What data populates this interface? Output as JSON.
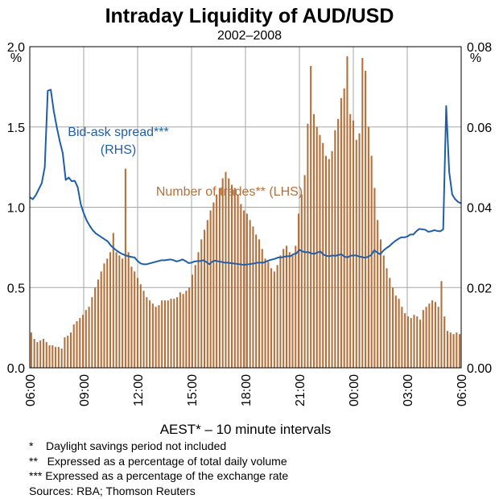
{
  "chart_data": {
    "type": "bar+line",
    "title": "Intraday Liquidity of AUD/USD",
    "subtitle": "2002–2008",
    "xlabel": "AEST* – 10 minute intervals",
    "ylabel_left": "%",
    "ylabel_right": "%",
    "ylim_left": [
      0,
      2.0
    ],
    "ylim_right": [
      0,
      0.08
    ],
    "y_ticks_left": [
      "0.0",
      "0.5",
      "1.0",
      "1.5",
      "2.0"
    ],
    "y_ticks_right": [
      "0.00",
      "0.02",
      "0.04",
      "0.06",
      "0.08"
    ],
    "x_ticks": [
      "06:00",
      "09:00",
      "12:00",
      "15:00",
      "18:00",
      "21:00",
      "00:00",
      "03:00",
      "06:00"
    ],
    "grid": true,
    "series": [
      {
        "name": "Number of trades** (LHS)",
        "type": "bar",
        "axis": "left",
        "color": "#b5703a",
        "values": [
          0.22,
          0.18,
          0.16,
          0.17,
          0.18,
          0.16,
          0.14,
          0.14,
          0.13,
          0.13,
          0.12,
          0.19,
          0.2,
          0.22,
          0.27,
          0.29,
          0.31,
          0.33,
          0.36,
          0.38,
          0.44,
          0.5,
          0.55,
          0.6,
          0.65,
          0.68,
          0.72,
          0.84,
          0.72,
          0.7,
          0.68,
          1.24,
          0.72,
          0.63,
          0.6,
          0.56,
          0.52,
          0.48,
          0.44,
          0.42,
          0.4,
          0.38,
          0.39,
          0.42,
          0.42,
          0.42,
          0.43,
          0.43,
          0.44,
          0.47,
          0.46,
          0.48,
          0.5,
          0.58,
          0.64,
          0.72,
          0.8,
          0.86,
          0.92,
          0.98,
          1.03,
          1.08,
          1.12,
          1.18,
          1.22,
          1.18,
          1.14,
          1.12,
          1.08,
          1.02,
          0.98,
          0.96,
          0.92,
          0.88,
          0.83,
          0.8,
          0.74,
          0.68,
          0.66,
          0.62,
          0.6,
          0.64,
          0.7,
          0.74,
          0.76,
          0.72,
          0.7,
          0.76,
          0.96,
          1.08,
          1.2,
          1.52,
          1.88,
          1.58,
          1.5,
          1.45,
          1.4,
          1.32,
          1.3,
          1.35,
          1.48,
          1.55,
          1.68,
          1.74,
          1.94,
          1.58,
          1.54,
          1.42,
          1.46,
          1.93,
          1.85,
          1.5,
          1.32,
          1.12,
          0.92,
          0.8,
          0.7,
          0.62,
          0.56,
          0.5,
          0.45,
          0.43,
          0.38,
          0.34,
          0.32,
          0.31,
          0.33,
          0.32,
          0.3,
          0.36,
          0.38,
          0.4,
          0.42,
          0.41,
          0.38,
          0.54,
          0.32,
          0.23,
          0.22,
          0.21,
          0.22,
          0.21
        ]
      },
      {
        "name": "Bid-ask spread*** (RHS)",
        "type": "line",
        "axis": "right",
        "color": "#1f5ea8",
        "values": [
          0.0425,
          0.042,
          0.043,
          0.0445,
          0.046,
          0.05,
          0.069,
          0.0693,
          0.064,
          0.06,
          0.0565,
          0.0535,
          0.0468,
          0.0474,
          0.0465,
          0.0466,
          0.045,
          0.0408,
          0.0385,
          0.0367,
          0.0354,
          0.0343,
          0.0335,
          0.033,
          0.0325,
          0.032,
          0.0315,
          0.0305,
          0.0298,
          0.0292,
          0.0287,
          0.0283,
          0.028,
          0.0278,
          0.0276,
          0.0275,
          0.0266,
          0.026,
          0.0258,
          0.0258,
          0.026,
          0.0262,
          0.0264,
          0.0266,
          0.0268,
          0.0268,
          0.0269,
          0.027,
          0.0268,
          0.0265,
          0.0267,
          0.027,
          0.0266,
          0.0261,
          0.0262,
          0.0265,
          0.0266,
          0.0266,
          0.0268,
          0.0263,
          0.0258,
          0.0265,
          0.0267,
          0.0265,
          0.0264,
          0.0262,
          0.0262,
          0.0261,
          0.026,
          0.0259,
          0.0258,
          0.0257,
          0.0257,
          0.0258,
          0.0259,
          0.026,
          0.0262,
          0.0262,
          0.0262,
          0.0265,
          0.0268,
          0.027,
          0.0272,
          0.0275,
          0.0275,
          0.0277,
          0.0278,
          0.0278,
          0.0283,
          0.0285,
          0.0294,
          0.029,
          0.0288,
          0.0288,
          0.0285,
          0.0284,
          0.0287,
          0.029,
          0.0282,
          0.0279,
          0.0278,
          0.028,
          0.0279,
          0.0281,
          0.0283,
          0.0277,
          0.0275,
          0.0279,
          0.028,
          0.028,
          0.0277,
          0.0276,
          0.0274,
          0.0277,
          0.0281,
          0.0293,
          0.0287,
          0.0283,
          0.0292,
          0.0298,
          0.0303,
          0.031,
          0.0316,
          0.0321,
          0.0325,
          0.0325,
          0.0327,
          0.0332,
          0.0332,
          0.034,
          0.0346,
          0.0345,
          0.0344,
          0.0339,
          0.034,
          0.0343,
          0.0341,
          0.034,
          0.0345,
          0.0652,
          0.0488,
          0.0432,
          0.042,
          0.0413,
          0.041
        ]
      }
    ],
    "annotations": [
      {
        "text": "Bid-ask spread***",
        "color": "#1f5ea8"
      },
      {
        "text": "(RHS)",
        "color": "#1f5ea8"
      },
      {
        "text": "Number of trades** (LHS)",
        "color": "#b5703a"
      }
    ]
  },
  "footnotes": [
    "*    Daylight savings period not included",
    "**   Expressed as a percentage of total daily volume",
    "*** Expressed as a percentage of the exchange rate",
    "Sources: RBA; Thomson Reuters"
  ]
}
